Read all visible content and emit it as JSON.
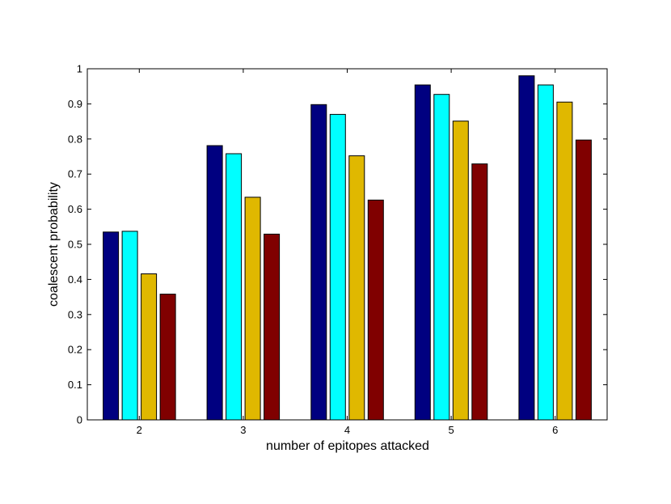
{
  "chart_data": {
    "type": "bar",
    "title": "",
    "xlabel": "number of epitopes attacked",
    "ylabel": "coalescent probability",
    "categories": [
      "2",
      "3",
      "4",
      "5",
      "6"
    ],
    "ylim": [
      0,
      1
    ],
    "yticks": [
      "0",
      "0.1",
      "0.2",
      "0.3",
      "0.4",
      "0.5",
      "0.6",
      "0.7",
      "0.8",
      "0.9",
      "1"
    ],
    "grid": false,
    "legend": "none",
    "series": [
      {
        "color": "#000080",
        "values": [
          0.535,
          0.781,
          0.898,
          0.954,
          0.98
        ]
      },
      {
        "color": "#00ffff",
        "values": [
          0.537,
          0.758,
          0.87,
          0.927,
          0.954
        ]
      },
      {
        "color": "#e0b800",
        "values": [
          0.416,
          0.634,
          0.752,
          0.851,
          0.905
        ]
      },
      {
        "color": "#800000",
        "values": [
          0.358,
          0.529,
          0.626,
          0.729,
          0.797
        ]
      }
    ]
  }
}
